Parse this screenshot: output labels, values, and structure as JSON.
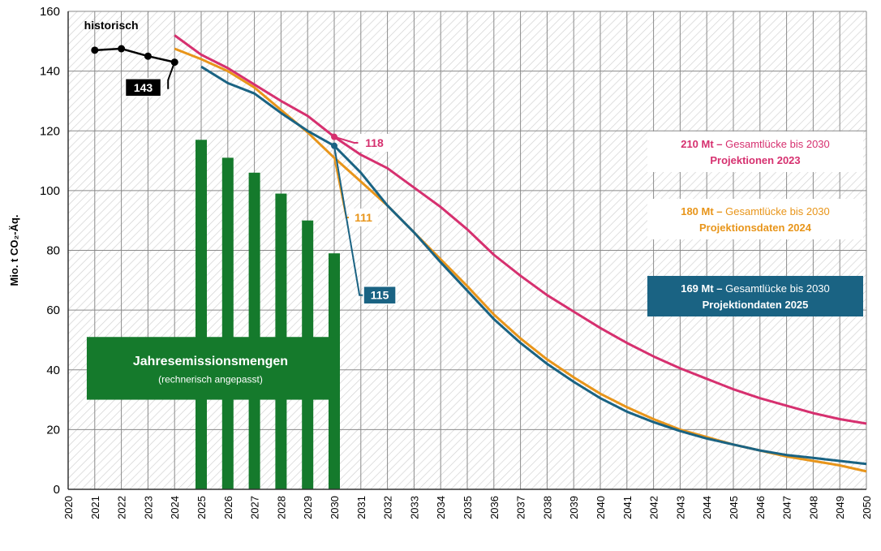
{
  "chart_data": {
    "type": "line",
    "ylabel": "Mio. t CO₂-Äq.",
    "xlim": [
      2020,
      2050
    ],
    "ylim": [
      0,
      160
    ],
    "y_ticks": [
      0,
      20,
      40,
      60,
      80,
      100,
      120,
      140,
      160
    ],
    "x_ticks": [
      "2020",
      "2021",
      "2022",
      "2023",
      "2024",
      "2025",
      "2026",
      "2027",
      "2028",
      "2029",
      "2030",
      "2031",
      "2032",
      "2033",
      "2034",
      "2035",
      "2036",
      "2037",
      "2038",
      "2039",
      "2040",
      "2041",
      "2042",
      "2043",
      "2044",
      "2045",
      "2046",
      "2047",
      "2048",
      "2049",
      "2050"
    ],
    "grid": true,
    "colors": {
      "historisch": "#000000",
      "p2023": "#d6306f",
      "p2024": "#e8951a",
      "p2025": "#1a6383",
      "bars": "#157a2c"
    },
    "historisch": {
      "label": "historisch",
      "x": [
        2021,
        2022,
        2023,
        2024
      ],
      "y": [
        147,
        147.5,
        145,
        143
      ]
    },
    "series": [
      {
        "key": "p2023",
        "x": [
          2024,
          2025,
          2026,
          2027,
          2028,
          2029,
          2030,
          2031,
          2032,
          2033,
          2034,
          2035,
          2036,
          2037,
          2038,
          2039,
          2040,
          2041,
          2042,
          2043,
          2044,
          2045,
          2046,
          2047,
          2048,
          2049,
          2050
        ],
        "y": [
          152,
          145.5,
          141,
          135.5,
          130,
          125,
          118,
          112,
          107.5,
          101,
          94.5,
          87,
          78.5,
          71.5,
          65,
          59.5,
          54,
          49,
          44.5,
          40.5,
          37,
          33.5,
          30.5,
          28,
          25.5,
          23.5,
          22
        ]
      },
      {
        "key": "p2024",
        "x": [
          2024,
          2025,
          2026,
          2027,
          2028,
          2029,
          2030,
          2031,
          2032,
          2033,
          2034,
          2035,
          2036,
          2037,
          2038,
          2039,
          2040,
          2041,
          2042,
          2043,
          2044,
          2045,
          2046,
          2047,
          2048,
          2049,
          2050
        ],
        "y": [
          147.5,
          144,
          140,
          134.5,
          127,
          119.5,
          111,
          103,
          95,
          86,
          77,
          68,
          58.5,
          50.5,
          43.5,
          37.5,
          32,
          27.5,
          23.5,
          20,
          17.5,
          15,
          13,
          11,
          9.5,
          8,
          6
        ]
      },
      {
        "key": "p2025",
        "x": [
          2025,
          2026,
          2027,
          2028,
          2029,
          2030,
          2031,
          2032,
          2033,
          2034,
          2035,
          2036,
          2037,
          2038,
          2039,
          2040,
          2041,
          2042,
          2043,
          2044,
          2045,
          2046,
          2047,
          2048,
          2049,
          2050
        ],
        "y": [
          141.5,
          136,
          132.5,
          126,
          120,
          115,
          106,
          95,
          86,
          76,
          66.5,
          57,
          49,
          42,
          36,
          30.5,
          26,
          22.5,
          19.5,
          17,
          15,
          13,
          11.5,
          10.5,
          9.5,
          8.5
        ]
      }
    ],
    "bars": {
      "x": [
        2025,
        2026,
        2027,
        2028,
        2029,
        2030
      ],
      "y": [
        117,
        111,
        106,
        99,
        90,
        79
      ]
    },
    "callouts": {
      "hist_2024": "143",
      "p2023_2030": "118",
      "p2024_2030": "111",
      "p2025_2030": "115"
    },
    "legend_boxes": [
      {
        "key": "p2023",
        "bold": "210 Mt –",
        "text": " Gesamtlücke bis 2030",
        "line2": "Projektionen  2023"
      },
      {
        "key": "p2024",
        "bold": "180 Mt –",
        "text": " Gesamtlücke bis 2030",
        "line2": "Projektionsdaten 2024"
      },
      {
        "key": "p2025",
        "bold": "169 Mt –",
        "text": " Gesamtlücke bis 2030",
        "line2": "Projektiondaten 2025"
      }
    ],
    "bar_label": {
      "title": "Jahresemissionsmengen",
      "subtitle": "(rechnerisch angepasst)"
    }
  }
}
